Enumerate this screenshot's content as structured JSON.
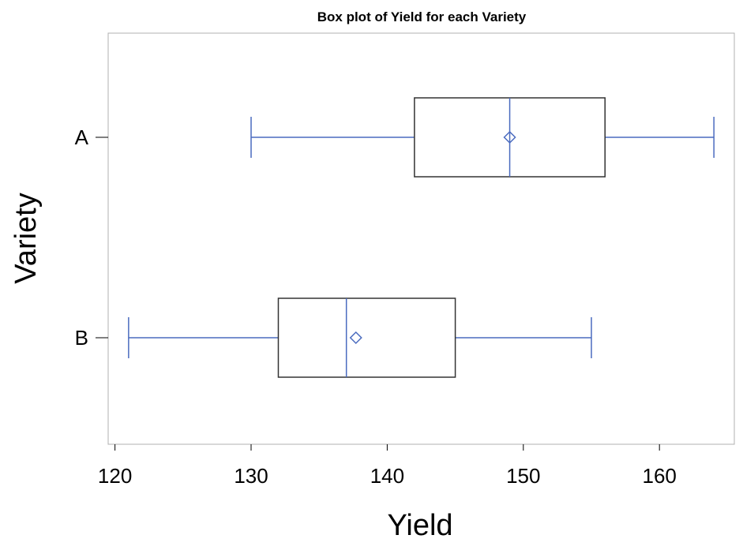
{
  "chart_data": {
    "type": "boxplot",
    "orientation": "horizontal",
    "title": "Box plot of Yield for each Variety",
    "xlabel": "Yield",
    "ylabel": "Variety",
    "xlim": [
      119.5,
      165.5
    ],
    "xticks": [
      120,
      130,
      140,
      150,
      160
    ],
    "categories": [
      "A",
      "B"
    ],
    "boxes": [
      {
        "category": "A",
        "whisker_low": 130,
        "q1": 142,
        "median": 149,
        "q3": 156,
        "whisker_high": 164,
        "mean": 149
      },
      {
        "category": "B",
        "whisker_low": 121,
        "q1": 132,
        "median": 137,
        "q3": 145,
        "whisker_high": 155,
        "mean": 137.7
      }
    ],
    "grid": false,
    "colors": {
      "whisker": "#4a6bbf",
      "box": "#333333",
      "frame": "#b0b0b0",
      "axis": "#000000"
    }
  }
}
